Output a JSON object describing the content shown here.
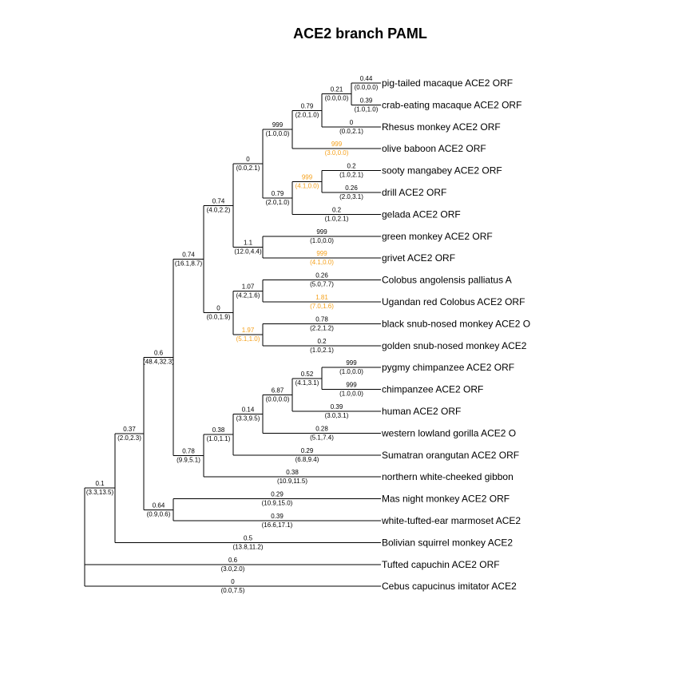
{
  "title": "ACE2 branch PAML",
  "colors": {
    "line": "#000000",
    "text": "#000000",
    "highlight": "#f5a01a"
  },
  "tree": {
    "name": "root",
    "children": [
      {
        "name": "inner-a",
        "w": "0.1",
        "ns": "(3.3,13.5)",
        "children": [
          {
            "name": "inner-b",
            "w": "0.37",
            "ns": "(2.0,2.3)",
            "children": [
              {
                "name": "inner-c",
                "w": "0.6",
                "ns": "(48.4,32.3)",
                "children": [
                  {
                    "name": "old-world-monkeys",
                    "w": "0.74",
                    "ns": "(16.1,8.7)",
                    "children": [
                      {
                        "name": "papionini-cercopithecini",
                        "w": "0.74",
                        "ns": "(4.0,2.2)",
                        "children": [
                          {
                            "name": "papionini",
                            "w": "0",
                            "ns": "(0.0,2.1)",
                            "children": [
                              {
                                "name": "macaca-papio",
                                "w": "999",
                                "ns": "(1.0,0.0)",
                                "children": [
                                  {
                                    "name": "macaca",
                                    "w": "0.79",
                                    "ns": "(2.0,1.0)",
                                    "children": [
                                      {
                                        "name": "macaca-pair",
                                        "w": "0.21",
                                        "ns": "(0.0,0.0)",
                                        "children": [
                                          {
                                            "label": "pig-tailed macaque ACE2 ORF",
                                            "w": "0.44",
                                            "ns": "(0.0,0.0)"
                                          },
                                          {
                                            "label": "crab-eating macaque ACE2 ORF",
                                            "w": "0.39",
                                            "ns": "(1.0,1.0)"
                                          }
                                        ]
                                      },
                                      {
                                        "label": "Rhesus monkey ACE2 ORF",
                                        "w": "0",
                                        "ns": "(0.0,2.1)"
                                      }
                                    ]
                                  },
                                  {
                                    "label": "olive baboon ACE2 ORF",
                                    "w": "999",
                                    "ns": "(3.0,0.0)",
                                    "hl": true
                                  }
                                ]
                              },
                              {
                                "name": "mangabey-drill-gelada",
                                "w": "0.79",
                                "ns": "(2.0,1.0)",
                                "children": [
                                  {
                                    "name": "mangabey-drill",
                                    "w": "999",
                                    "ns": "(4.1,0.0)",
                                    "hl": true,
                                    "children": [
                                      {
                                        "label": "sooty mangabey ACE2 ORF",
                                        "w": "0.2",
                                        "ns": "(1.0,2.1)"
                                      },
                                      {
                                        "label": "drill ACE2 ORF",
                                        "w": "0.26",
                                        "ns": "(2.0,3.1)"
                                      }
                                    ]
                                  },
                                  {
                                    "label": "gelada ACE2 ORF",
                                    "w": "0.2",
                                    "ns": "(1.0,2.1)"
                                  }
                                ]
                              }
                            ]
                          },
                          {
                            "name": "chlorocebus",
                            "w": "1.1",
                            "ns": "(12.0,4.4)",
                            "children": [
                              {
                                "label": "green monkey ACE2 ORF",
                                "w": "999",
                                "ns": "(1.0,0.0)"
                              },
                              {
                                "label": "grivet ACE2 ORF",
                                "w": "999",
                                "ns": "(4.1,0.0)",
                                "hl": true
                              }
                            ]
                          }
                        ]
                      },
                      {
                        "name": "colobinae",
                        "w": "0",
                        "ns": "(0.0,1.9)",
                        "children": [
                          {
                            "name": "colobus",
                            "w": "1.07",
                            "ns": "(4.2,1.6)",
                            "children": [
                              {
                                "label": "Colobus angolensis palliatus A",
                                "w": "0.26",
                                "ns": "(5.0,7.7)"
                              },
                              {
                                "label": "Ugandan red Colobus ACE2 ORF",
                                "w": "1.81",
                                "ns": "(7.0,1.6)",
                                "hl": true
                              }
                            ]
                          },
                          {
                            "name": "rhinopithecus",
                            "w": "1.97",
                            "ns": "(5.1,1.0)",
                            "hl": true,
                            "children": [
                              {
                                "label": "black snub-nosed monkey ACE2 O",
                                "w": "0.78",
                                "ns": "(2.2,1.2)"
                              },
                              {
                                "label": "golden snub-nosed monkey ACE2",
                                "w": "0.2",
                                "ns": "(1.0,2.1)"
                              }
                            ]
                          }
                        ]
                      }
                    ]
                  },
                  {
                    "name": "hominoidea",
                    "w": "0.78",
                    "ns": "(9.9,5.1)",
                    "children": [
                      {
                        "name": "hominidae",
                        "w": "0.38",
                        "ns": "(1.0,1.1)",
                        "children": [
                          {
                            "name": "homininae",
                            "w": "0.14",
                            "ns": "(3.3,9.5)",
                            "children": [
                              {
                                "name": "hominini",
                                "w": "6.87",
                                "ns": "(0.0,0.0)",
                                "children": [
                                  {
                                    "name": "pan",
                                    "w": "0.52",
                                    "ns": "(4.1,3.1)",
                                    "children": [
                                      {
                                        "label": "pygmy chimpanzee ACE2 ORF",
                                        "w": "999",
                                        "ns": "(1.0,0.0)"
                                      },
                                      {
                                        "label": "chimpanzee ACE2 ORF",
                                        "w": "999",
                                        "ns": "(1.0,0.0)"
                                      }
                                    ]
                                  },
                                  {
                                    "label": "human ACE2 ORF",
                                    "w": "0.39",
                                    "ns": "(3.0,3.1)"
                                  }
                                ]
                              },
                              {
                                "label": "western lowland gorilla ACE2 O",
                                "w": "0.28",
                                "ns": "(5.1,7.4)"
                              }
                            ]
                          },
                          {
                            "label": "Sumatran orangutan ACE2 ORF",
                            "w": "0.29",
                            "ns": "(6.8,9.4)"
                          }
                        ]
                      },
                      {
                        "label": "northern white-cheeked gibbon",
                        "w": "0.38",
                        "ns": "(10.9,11.5)"
                      }
                    ]
                  }
                ]
              },
              {
                "name": "callitrichidae-aotidae",
                "w": "0.64",
                "ns": "(0.9,0.6)",
                "children": [
                  {
                    "label": "Mas night monkey ACE2 ORF",
                    "w": "0.29",
                    "ns": "(10.9,15.0)"
                  },
                  {
                    "label": "white-tufted-ear marmoset ACE2",
                    "w": "0.39",
                    "ns": "(16.6,17.1)"
                  }
                ]
              }
            ]
          },
          {
            "label": "Bolivian squirrel monkey ACE2",
            "w": "0.5",
            "ns": "(13.8,11.2)"
          }
        ]
      },
      {
        "label": "Tufted capuchin ACE2 ORF",
        "w": "0.6",
        "ns": "(3.0,2.0)"
      },
      {
        "label": "Cebus capucinus imitator ACE2",
        "w": "0",
        "ns": "(0.0,7.5)"
      }
    ]
  }
}
